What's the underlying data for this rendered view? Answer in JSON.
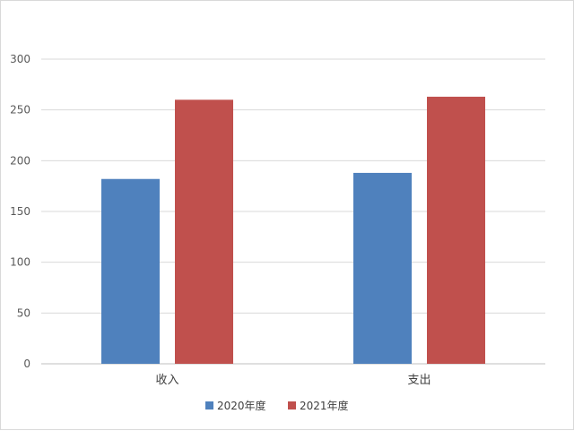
{
  "chart_data": {
    "type": "bar",
    "categories": [
      "收入",
      "支出"
    ],
    "series": [
      {
        "name": "2020年度",
        "color": "#4f81bd",
        "values": [
          182,
          188
        ]
      },
      {
        "name": "2021年度",
        "color": "#c0504d",
        "values": [
          260,
          263
        ]
      }
    ],
    "ylim": [
      0,
      300
    ],
    "yticks": [
      0,
      50,
      100,
      150,
      200,
      250,
      300
    ],
    "grid": true,
    "legend_position": "bottom"
  }
}
